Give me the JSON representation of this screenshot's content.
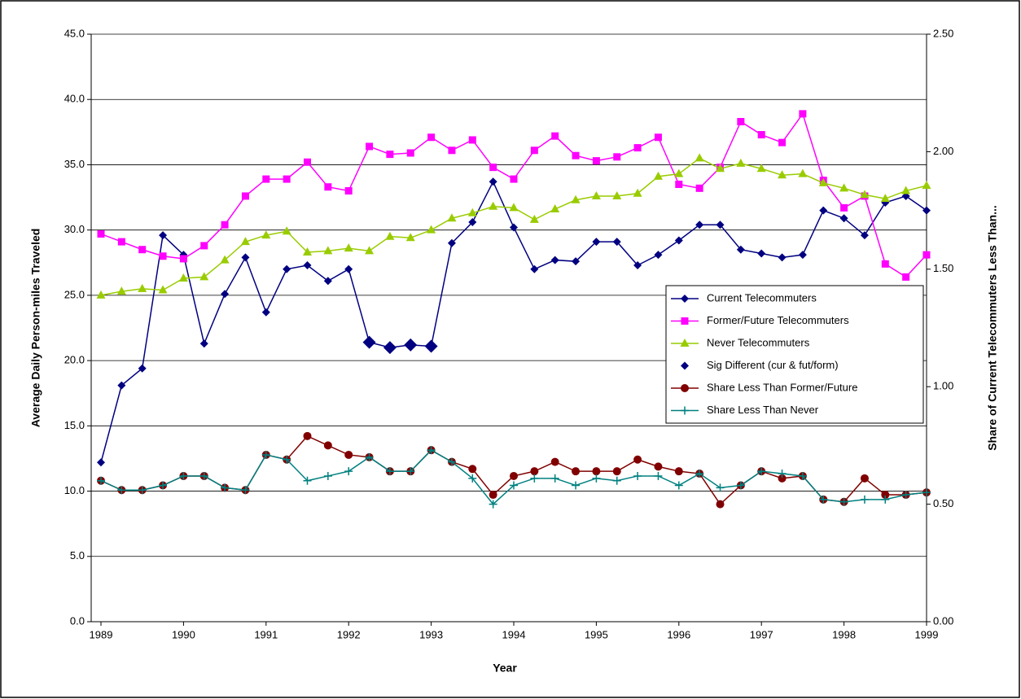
{
  "chart_data": {
    "type": "line",
    "x_label": "Year",
    "y_label": "Average Daily Person-miles Traveled",
    "y2_label": "Share of Current Telecommuters Less Than...",
    "x": [
      1989,
      1989.25,
      1989.5,
      1989.75,
      1990,
      1990.25,
      1990.5,
      1990.75,
      1991,
      1991.25,
      1991.5,
      1991.75,
      1992,
      1992.25,
      1992.5,
      1992.75,
      1993,
      1993.25,
      1993.5,
      1993.75,
      1994,
      1994.25,
      1994.5,
      1994.75,
      1995,
      1995.25,
      1995.5,
      1995.75,
      1996,
      1996.25,
      1996.5,
      1996.75,
      1997,
      1997.25,
      1997.5,
      1997.75,
      1998,
      1998.25,
      1998.5,
      1998.75,
      1999
    ],
    "xlim": [
      1989,
      1999
    ],
    "xticks": [
      1989,
      1990,
      1991,
      1992,
      1993,
      1994,
      1995,
      1996,
      1997,
      1998,
      1999
    ],
    "ylim": [
      0,
      45
    ],
    "yticks": [
      {
        "value": 0,
        "label": "0.0"
      },
      {
        "value": 5,
        "label": "5.0"
      },
      {
        "value": 10,
        "label": "10.0"
      },
      {
        "value": 15,
        "label": "15.0"
      },
      {
        "value": 20,
        "label": "20.0"
      },
      {
        "value": 25,
        "label": "25.0"
      },
      {
        "value": 30,
        "label": "30.0"
      },
      {
        "value": 35,
        "label": "35.0"
      },
      {
        "value": 40,
        "label": "40.0"
      },
      {
        "value": 45,
        "label": "45.0"
      }
    ],
    "y2lim": [
      0,
      2.5
    ],
    "y2ticks": [
      {
        "value": 0,
        "label": "0.00"
      },
      {
        "value": 0.5,
        "label": "0.50"
      },
      {
        "value": 1,
        "label": "1.00"
      },
      {
        "value": 1.5,
        "label": "1.50"
      },
      {
        "value": 2,
        "label": "2.00"
      },
      {
        "value": 2.5,
        "label": "2.50"
      }
    ],
    "grid": true,
    "legend": "right",
    "series": [
      {
        "name": "Current Telecommuters",
        "color": "#000080",
        "marker": "diamond",
        "line": true,
        "values": [
          12.2,
          18.1,
          19.4,
          29.6,
          28.1,
          21.3,
          25.1,
          27.9,
          23.7,
          27.0,
          27.3,
          26.1,
          27.0,
          21.4,
          21.0,
          21.2,
          21.1,
          29.0,
          30.6,
          33.7,
          30.2,
          27.0,
          27.7,
          27.6,
          29.1,
          29.1,
          27.3,
          28.1,
          29.2,
          30.4,
          30.4,
          28.5,
          28.2,
          27.9,
          28.1,
          31.5,
          30.9,
          29.6,
          32.1,
          32.6,
          31.5
        ]
      },
      {
        "name": "Former/Future Telecommuters",
        "color": "#FF00FF",
        "marker": "square",
        "line": true,
        "values": [
          29.7,
          29.1,
          28.5,
          28.0,
          27.8,
          28.8,
          30.4,
          32.6,
          33.9,
          33.9,
          35.2,
          33.3,
          33.0,
          36.4,
          35.8,
          35.9,
          37.1,
          36.1,
          36.9,
          34.8,
          33.9,
          36.1,
          37.2,
          35.7,
          35.3,
          35.6,
          36.3,
          37.1,
          33.5,
          33.2,
          34.8,
          38.3,
          37.3,
          36.7,
          38.9,
          33.8,
          31.7,
          32.6,
          27.4,
          26.4,
          28.1
        ]
      },
      {
        "name": "Never Telecommuters",
        "color": "#99CC00",
        "marker": "triangle",
        "line": true,
        "values": [
          25.0,
          25.3,
          25.5,
          25.4,
          26.3,
          26.4,
          27.7,
          29.1,
          29.6,
          29.9,
          28.3,
          28.4,
          28.6,
          28.4,
          29.5,
          29.4,
          30.0,
          30.9,
          31.3,
          31.8,
          31.7,
          30.8,
          31.6,
          32.3,
          32.6,
          32.6,
          32.8,
          34.1,
          34.3,
          35.5,
          34.7,
          35.1,
          34.7,
          34.2,
          34.3,
          33.6,
          33.2,
          32.7,
          32.4,
          33.0,
          33.4
        ]
      },
      {
        "name": "Sig Different (cur & fut/form)",
        "color": "#000080",
        "marker": "big-diamond",
        "line": false,
        "values": [
          null,
          null,
          null,
          null,
          null,
          null,
          null,
          null,
          null,
          null,
          null,
          null,
          null,
          21.4,
          21.0,
          21.2,
          21.1,
          null,
          null,
          null,
          null,
          null,
          null,
          null,
          null,
          null,
          null,
          null,
          null,
          null,
          null,
          null,
          null,
          null,
          null,
          null,
          null,
          null,
          null,
          null,
          null
        ]
      },
      {
        "name": "Share Less Than Former/Future",
        "color": "#800000",
        "marker": "circle",
        "line": true,
        "axis": "y2",
        "values": [
          0.6,
          0.56,
          0.56,
          0.58,
          0.62,
          0.62,
          0.57,
          0.56,
          0.71,
          0.69,
          0.79,
          0.75,
          0.71,
          0.7,
          0.64,
          0.64,
          0.73,
          0.68,
          0.65,
          0.54,
          0.62,
          0.64,
          0.68,
          0.64,
          0.64,
          0.64,
          0.69,
          0.66,
          0.64,
          0.63,
          0.5,
          0.58,
          0.64,
          0.61,
          0.62,
          0.52,
          0.51,
          0.61,
          0.54,
          0.54,
          0.55
        ]
      },
      {
        "name": "Share Less Than Never",
        "color": "#008080",
        "marker": "plus",
        "line": true,
        "axis": "y2",
        "values": [
          0.6,
          0.56,
          0.56,
          0.58,
          0.62,
          0.62,
          0.57,
          0.56,
          0.71,
          0.69,
          0.6,
          0.62,
          0.64,
          0.7,
          0.64,
          0.64,
          0.73,
          0.68,
          0.61,
          0.5,
          0.58,
          0.61,
          0.61,
          0.58,
          0.61,
          0.6,
          0.62,
          0.62,
          0.58,
          0.63,
          0.57,
          0.58,
          0.64,
          0.63,
          0.62,
          0.52,
          0.51,
          0.52,
          0.52,
          0.54,
          0.55
        ]
      }
    ]
  }
}
